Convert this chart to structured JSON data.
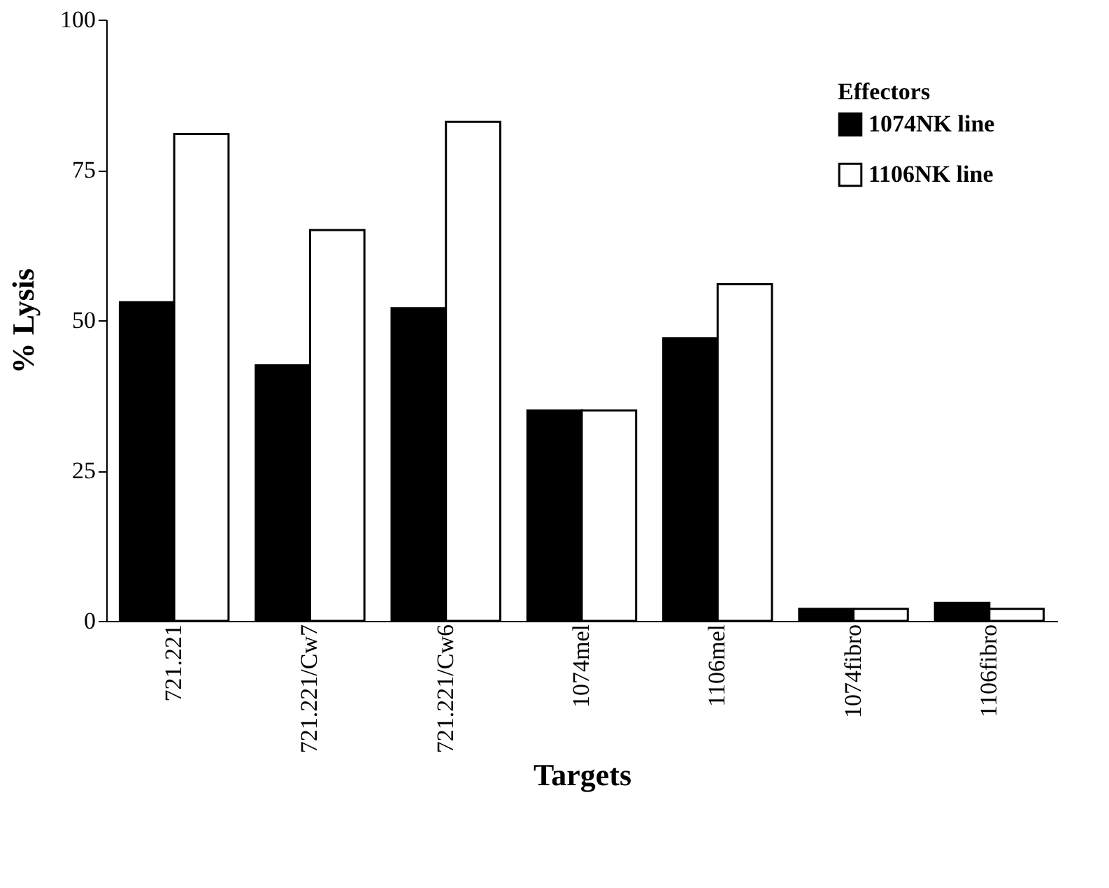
{
  "chart_data": {
    "type": "bar",
    "xlabel": "Targets",
    "ylabel": "% Lysis",
    "legend_title": "Effectors",
    "legend": "top right",
    "categories": [
      "721.221",
      "721.221/Cw7",
      "721.221/Cw6",
      "1074mel",
      "1106mel",
      "1074fibro",
      "1106fibro"
    ],
    "series": [
      {
        "name": "1074NK line",
        "color": "#000000",
        "values": [
          53,
          42.5,
          52,
          35,
          47,
          2,
          3
        ]
      },
      {
        "name": "1106NK line",
        "color": "#ffffff",
        "values": [
          81,
          65,
          83,
          35,
          56,
          2,
          2
        ]
      }
    ],
    "ylim": [
      0,
      100
    ],
    "yticks": [
      0,
      25,
      50,
      75,
      100
    ],
    "grid": false
  }
}
